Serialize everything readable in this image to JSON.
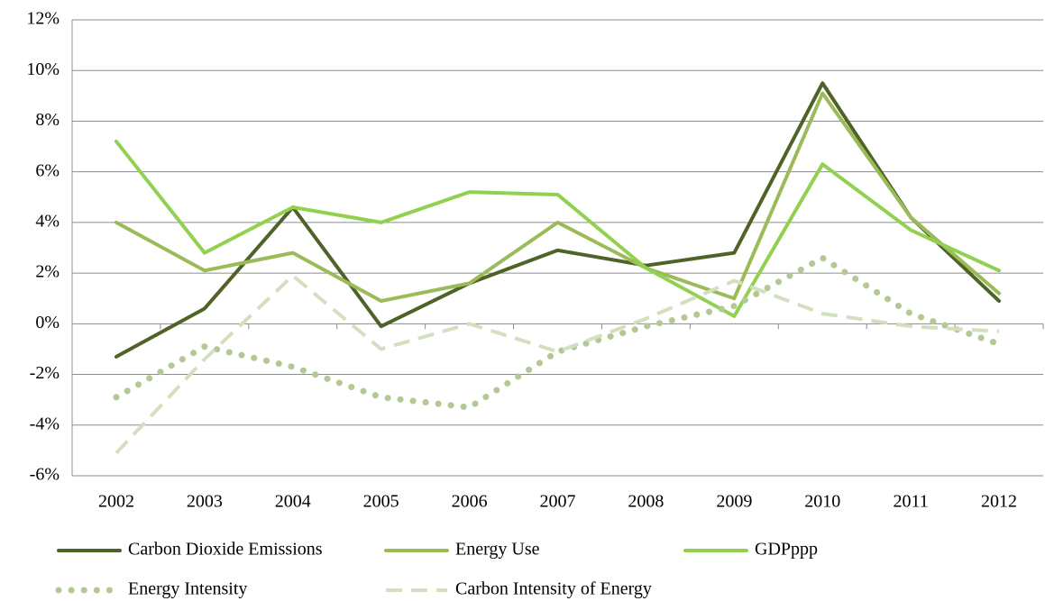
{
  "chart_data": {
    "type": "line",
    "categories": [
      "2002",
      "2003",
      "2004",
      "2005",
      "2006",
      "2007",
      "2008",
      "2009",
      "2010",
      "2011",
      "2012"
    ],
    "series": [
      {
        "name": "Carbon Dioxide Emissions",
        "color": "#4f6228",
        "dash": "solid",
        "values": [
          -1.3,
          0.6,
          4.6,
          -0.1,
          1.6,
          2.9,
          2.3,
          2.8,
          9.5,
          4.2,
          0.9
        ]
      },
      {
        "name": "Energy Use",
        "color": "#9bbb59",
        "dash": "solid",
        "values": [
          4.0,
          2.1,
          2.8,
          0.9,
          1.6,
          4.0,
          2.2,
          1.0,
          9.1,
          4.2,
          1.2
        ]
      },
      {
        "name": "GDPppp",
        "color": "#92d050",
        "dash": "solid",
        "values": [
          7.2,
          2.8,
          4.6,
          4.0,
          5.2,
          5.1,
          2.2,
          0.3,
          6.3,
          3.7,
          2.1
        ]
      },
      {
        "name": "Energy Intensity",
        "color": "#b3c994",
        "dash": "dotted",
        "values": [
          -2.9,
          -0.9,
          -1.7,
          -2.9,
          -3.3,
          -1.1,
          -0.1,
          0.7,
          2.6,
          0.4,
          -0.8
        ]
      },
      {
        "name": "Carbon Intensity of Energy",
        "color": "#d3e0bf",
        "dash": "dashed",
        "values": [
          -5.1,
          -1.4,
          1.9,
          -1.0,
          0.0,
          -1.1,
          0.2,
          1.7,
          0.4,
          -0.1,
          -0.3
        ]
      }
    ],
    "ylim": [
      -6,
      12
    ],
    "yticks": [
      {
        "value": -6,
        "label": "-6%"
      },
      {
        "value": -4,
        "label": "-4%"
      },
      {
        "value": -2,
        "label": "-2%"
      },
      {
        "value": 0,
        "label": "0%"
      },
      {
        "value": 2,
        "label": "2%"
      },
      {
        "value": 4,
        "label": "4%"
      },
      {
        "value": 6,
        "label": "6%"
      },
      {
        "value": 8,
        "label": "8%"
      },
      {
        "value": 10,
        "label": "10%"
      },
      {
        "value": 12,
        "label": "12%"
      }
    ],
    "grid": true,
    "legend": "bottom"
  }
}
